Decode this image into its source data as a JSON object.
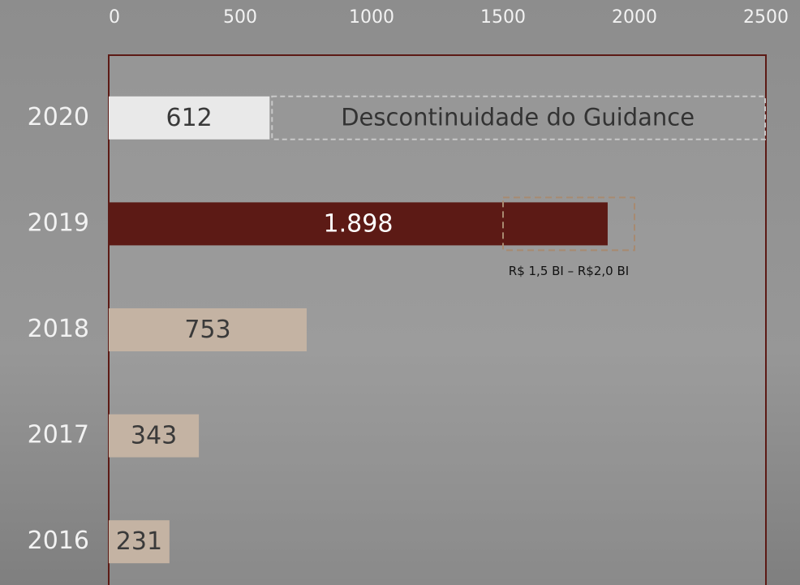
{
  "chart_data": {
    "type": "bar",
    "orientation": "horizontal",
    "categories": [
      "2020",
      "2019",
      "2018",
      "2017",
      "2016"
    ],
    "values": [
      612,
      1898,
      753,
      343,
      231
    ],
    "value_labels": [
      "612",
      "1.898",
      "753",
      "343",
      "231"
    ],
    "colors": [
      "#e9e9e9",
      "#5c1a15",
      "#c4b3a3",
      "#c4b3a3",
      "#c4b3a3"
    ],
    "xlim": [
      0,
      2500
    ],
    "xticks": [
      0,
      500,
      1000,
      1500,
      2000,
      2500
    ],
    "annotation": "Descontinuidade do Guidance",
    "guidance": {
      "label": "R$ 1,5 BI – R$2,0 BI",
      "range": [
        1500,
        2000
      ]
    }
  }
}
